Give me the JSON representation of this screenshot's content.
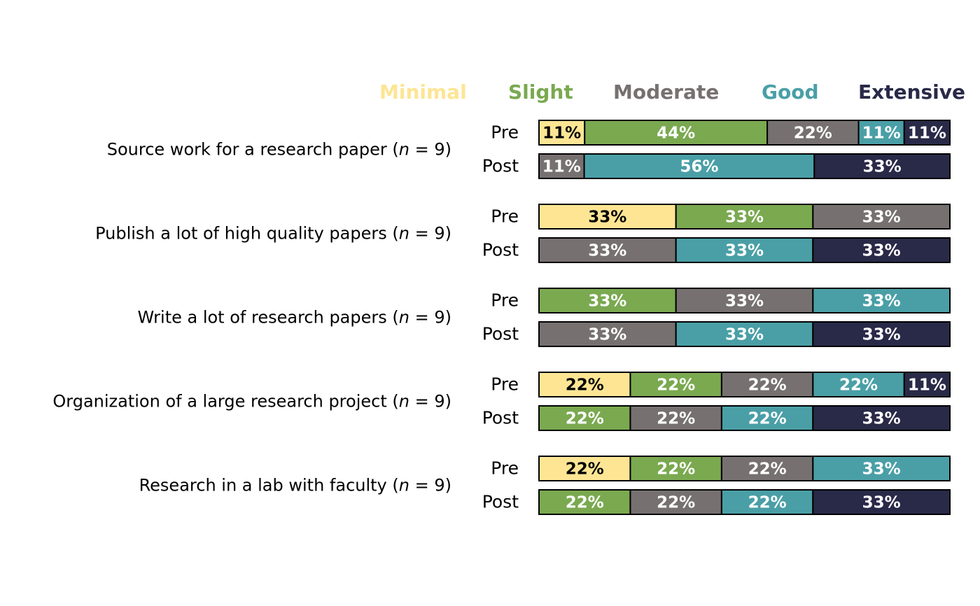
{
  "chart_data": {
    "type": "bar",
    "orientation": "horizontal-stacked-100",
    "legend_position": "top",
    "grid": false,
    "categories": [
      "Minimal",
      "Slight",
      "Moderate",
      "Good",
      "Extensive"
    ],
    "colors": {
      "Minimal": "#FDE594",
      "Slight": "#7AA950",
      "Moderate": "#767170",
      "Good": "#4A9FA6",
      "Extensive": "#292A48"
    },
    "label_colors": {
      "Minimal": "#000000",
      "Slight": "#FFFFFF",
      "Moderate": "#FFFFFF",
      "Good": "#FFFFFF",
      "Extensive": "#FFFFFF"
    },
    "n_prefix": "n",
    "timepoints": [
      "Pre",
      "Post"
    ],
    "questions": [
      {
        "label": "Source work for a research paper",
        "n": 9,
        "n_text": "9",
        "pre": {
          "Minimal": 11,
          "Slight": 44,
          "Moderate": 22,
          "Good": 11,
          "Extensive": 11
        },
        "post": {
          "Minimal": 0,
          "Slight": 0,
          "Moderate": 11,
          "Good": 56,
          "Extensive": 33
        }
      },
      {
        "label": "Publish a lot of high quality papers",
        "n": 9,
        "n_text": "9",
        "pre": {
          "Minimal": 33,
          "Slight": 33,
          "Moderate": 33,
          "Good": 0,
          "Extensive": 0
        },
        "post": {
          "Minimal": 0,
          "Slight": 0,
          "Moderate": 33,
          "Good": 33,
          "Extensive": 33
        }
      },
      {
        "label": "Write a lot of research papers",
        "n": 9,
        "n_text": "9",
        "pre": {
          "Minimal": 0,
          "Slight": 33,
          "Moderate": 33,
          "Good": 33,
          "Extensive": 0
        },
        "post": {
          "Minimal": 0,
          "Slight": 0,
          "Moderate": 33,
          "Good": 33,
          "Extensive": 33
        }
      },
      {
        "label": "Organization of a large research project",
        "n": 9,
        "n_text": "9",
        "pre": {
          "Minimal": 22,
          "Slight": 22,
          "Moderate": 22,
          "Good": 22,
          "Extensive": 11
        },
        "post": {
          "Minimal": 0,
          "Slight": 22,
          "Moderate": 22,
          "Good": 22,
          "Extensive": 33
        }
      },
      {
        "label": "Research in a lab with faculty",
        "n": 9,
        "n_text": "9",
        "pre": {
          "Minimal": 22,
          "Slight": 22,
          "Moderate": 22,
          "Good": 33,
          "Extensive": 0
        },
        "post": {
          "Minimal": 0,
          "Slight": 22,
          "Moderate": 22,
          "Good": 22,
          "Extensive": 33
        }
      }
    ]
  }
}
